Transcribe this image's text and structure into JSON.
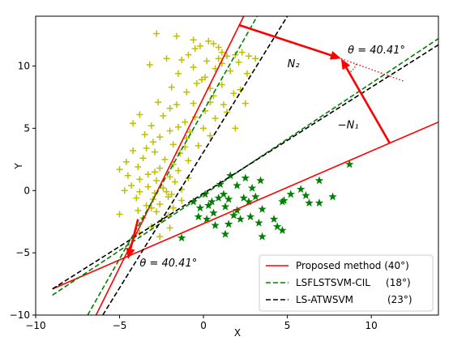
{
  "chart_data": {
    "type": "scatter",
    "title": "",
    "xlabel": "X",
    "ylabel": "Y",
    "xlim": [
      -10,
      14
    ],
    "ylim": [
      -10,
      14
    ],
    "xticks": [
      -10,
      -5,
      0,
      5,
      10
    ],
    "yticks": [
      -10,
      -5,
      0,
      5,
      10
    ],
    "xtick_labels": [
      "−10",
      "−5",
      "0",
      "5",
      "10"
    ],
    "ytick_labels": [
      "−10",
      "−5",
      "0",
      "5",
      "10"
    ],
    "grid": false,
    "legend_position": "lower-right",
    "series": [
      {
        "marker": "plus",
        "color": "#bfbf00",
        "points": [
          [
            -2.8,
            12.6
          ],
          [
            -1.6,
            12.4
          ],
          [
            -0.6,
            12.1
          ],
          [
            0.3,
            12.0
          ],
          [
            0.6,
            11.8
          ],
          [
            -0.2,
            11.6
          ],
          [
            0.9,
            11.5
          ],
          [
            -0.5,
            11.4
          ],
          [
            1.1,
            11.1
          ],
          [
            2.3,
            11.1
          ],
          [
            -0.9,
            10.9
          ],
          [
            1.4,
            10.8
          ],
          [
            1.9,
            10.9
          ],
          [
            2.7,
            10.8
          ],
          [
            -2.2,
            10.6
          ],
          [
            -1.3,
            10.5
          ],
          [
            0.2,
            10.4
          ],
          [
            1.1,
            10.2
          ],
          [
            2.1,
            10.3
          ],
          [
            3.1,
            10.6
          ],
          [
            -3.2,
            10.1
          ],
          [
            -0.6,
            9.9
          ],
          [
            0.7,
            9.8
          ],
          [
            1.6,
            9.6
          ],
          [
            -1.5,
            9.4
          ],
          [
            0.1,
            9.1
          ],
          [
            2.6,
            9.4
          ],
          [
            -0.4,
            8.6
          ],
          [
            1.1,
            8.5
          ],
          [
            -1.9,
            8.3
          ],
          [
            0.4,
            8.2
          ],
          [
            2.2,
            8.1
          ],
          [
            -1.0,
            7.9
          ],
          [
            0.6,
            7.6
          ],
          [
            1.8,
            7.8
          ],
          [
            -2.7,
            7.1
          ],
          [
            -0.6,
            7.0
          ],
          [
            1.2,
            6.9
          ],
          [
            2.5,
            7.0
          ],
          [
            -2.0,
            6.6
          ],
          [
            0.1,
            6.4
          ],
          [
            1.4,
            6.3
          ],
          [
            -3.8,
            6.1
          ],
          [
            -2.4,
            6.0
          ],
          [
            -0.5,
            5.9
          ],
          [
            0.7,
            5.8
          ],
          [
            -4.2,
            5.4
          ],
          [
            -3.1,
            5.2
          ],
          [
            -1.5,
            5.1
          ],
          [
            0.0,
            5.0
          ],
          [
            1.9,
            5.0
          ],
          [
            -2.0,
            4.8
          ],
          [
            -0.8,
            4.7
          ],
          [
            -3.5,
            4.5
          ],
          [
            -2.6,
            4.3
          ],
          [
            -1.0,
            4.2
          ],
          [
            0.4,
            4.4
          ],
          [
            -3.0,
            3.9
          ],
          [
            -1.8,
            3.7
          ],
          [
            -0.3,
            3.6
          ],
          [
            -4.2,
            3.2
          ],
          [
            -2.9,
            3.1
          ],
          [
            -1.4,
            3.0
          ],
          [
            -3.6,
            2.6
          ],
          [
            -2.3,
            2.5
          ],
          [
            -0.9,
            2.4
          ],
          [
            -5.0,
            1.7
          ],
          [
            -3.9,
            1.9
          ],
          [
            -2.6,
            1.8
          ],
          [
            -1.5,
            1.6
          ],
          [
            -4.5,
            1.2
          ],
          [
            -3.3,
            1.3
          ],
          [
            -2.0,
            1.1
          ],
          [
            -0.9,
            1.0
          ],
          [
            -3.8,
            0.9
          ],
          [
            -2.8,
            0.8
          ],
          [
            -1.7,
            0.7
          ],
          [
            -4.3,
            0.4
          ],
          [
            -3.3,
            0.3
          ],
          [
            -2.4,
            0.2
          ],
          [
            -1.3,
            0.1
          ],
          [
            -4.7,
            0.0
          ],
          [
            -3.8,
            -0.1
          ],
          [
            -2.9,
            -0.2
          ],
          [
            -1.9,
            -0.3
          ],
          [
            -4.0,
            -0.6
          ],
          [
            -3.0,
            -0.7
          ],
          [
            -2.1,
            -0.5
          ],
          [
            -1.3,
            -0.8
          ],
          [
            -3.4,
            -1.2
          ],
          [
            -2.6,
            -1.1
          ],
          [
            -1.8,
            -1.4
          ],
          [
            -5.0,
            -1.9
          ],
          [
            -3.9,
            -1.6
          ],
          [
            -2.8,
            -1.7
          ],
          [
            -2.1,
            -2.0
          ],
          [
            -3.6,
            -2.2
          ],
          [
            -2.5,
            -2.4
          ],
          [
            -3.1,
            -2.9
          ],
          [
            -2.0,
            -3.0
          ],
          [
            -3.8,
            -3.4
          ],
          [
            -2.6,
            -3.7
          ],
          [
            -1.6,
            6.9
          ],
          [
            -0.1,
            8.9
          ],
          [
            0.9,
            10.6
          ],
          [
            -1.1,
            5.5
          ],
          [
            0.4,
            7.1
          ],
          [
            -3.4,
            3.4
          ],
          [
            -1.8,
            2.1
          ],
          [
            -2.9,
            1.5
          ],
          [
            -2.2,
            -0.1
          ],
          [
            -3.1,
            -1.4
          ],
          [
            -1.1,
            3.5
          ],
          [
            -4.6,
            2.3
          ]
        ]
      },
      {
        "marker": "star",
        "color": "#008000",
        "points": [
          [
            8.7,
            2.1
          ],
          [
            1.6,
            1.2
          ],
          [
            2.5,
            1.0
          ],
          [
            3.4,
            0.8
          ],
          [
            1.0,
            0.5
          ],
          [
            2.0,
            0.4
          ],
          [
            2.9,
            0.2
          ],
          [
            6.9,
            0.8
          ],
          [
            5.8,
            0.1
          ],
          [
            0.1,
            -0.3
          ],
          [
            1.2,
            -0.3
          ],
          [
            2.4,
            -0.6
          ],
          [
            3.1,
            -0.5
          ],
          [
            7.7,
            -0.5
          ],
          [
            6.1,
            -0.4
          ],
          [
            -0.6,
            -0.9
          ],
          [
            0.5,
            -0.9
          ],
          [
            2.7,
            -0.9
          ],
          [
            4.7,
            -0.9
          ],
          [
            6.3,
            -1.0
          ],
          [
            6.9,
            -1.0
          ],
          [
            0.3,
            -1.2
          ],
          [
            1.3,
            -1.3
          ],
          [
            2.0,
            -1.6
          ],
          [
            3.5,
            -1.5
          ],
          [
            0.6,
            -1.8
          ],
          [
            1.8,
            -2.0
          ],
          [
            2.8,
            -2.1
          ],
          [
            4.2,
            -2.3
          ],
          [
            -0.3,
            -2.1
          ],
          [
            0.2,
            -2.3
          ],
          [
            3.3,
            -2.6
          ],
          [
            1.5,
            -2.7
          ],
          [
            0.7,
            -2.8
          ],
          [
            4.4,
            -2.9
          ],
          [
            4.7,
            -3.2
          ],
          [
            1.3,
            -3.5
          ],
          [
            3.5,
            -3.7
          ],
          [
            -1.3,
            -3.8
          ],
          [
            0.9,
            -0.6
          ],
          [
            1.5,
            -0.7
          ],
          [
            5.2,
            -0.3
          ],
          [
            4.8,
            -0.8
          ],
          [
            2.2,
            -2.3
          ],
          [
            -0.2,
            -1.4
          ]
        ]
      }
    ],
    "lines": [
      {
        "name": "Proposed method (40°)",
        "color": "#ff0000",
        "dash": "solid",
        "x": [
          -9,
          14
        ],
        "y": [
          -7.9,
          5.5
        ]
      },
      {
        "name": "",
        "color": "#ff0000",
        "dash": "solid",
        "x": [
          -6.4,
          2.4
        ],
        "y": [
          -10,
          14
        ]
      },
      {
        "name": "LSFLSTSVM-CIL     (18°)",
        "color": "#008000",
        "dash": "dashed",
        "x": [
          -9,
          14
        ],
        "y": [
          -8.4,
          12.2
        ]
      },
      {
        "name": "",
        "color": "#008000",
        "dash": "dashed",
        "x": [
          -6.9,
          3.2
        ],
        "y": [
          -10,
          14
        ]
      },
      {
        "name": "LS-ATWSVM           (23°)",
        "color": "#000000",
        "dash": "dashed",
        "x": [
          -9,
          14
        ],
        "y": [
          -7.9,
          11.7
        ]
      },
      {
        "name": "",
        "color": "#000000",
        "dash": "dashed",
        "x": [
          -6.0,
          5.0
        ],
        "y": [
          -10,
          14
        ]
      }
    ],
    "arrows": [
      {
        "color": "#ff0000",
        "from": [
          2.1,
          13.3
        ],
        "to": [
          8.2,
          10.6
        ]
      },
      {
        "color": "#ff0000",
        "from": [
          11.1,
          3.8
        ],
        "to": [
          8.2,
          10.6
        ]
      },
      {
        "color": "#ff0000",
        "from": [
          -3.9,
          -2.3
        ],
        "to": [
          -4.5,
          -5.5
        ]
      }
    ],
    "dotted_lines": [
      {
        "color": "#ff0000",
        "from": [
          8.2,
          10.6
        ],
        "to": [
          11.9,
          8.8
        ]
      }
    ],
    "annotations": [
      {
        "text": "θ = 40.41°",
        "x": 8.6,
        "y": 11.0
      },
      {
        "text": "N₂",
        "x": 5.0,
        "y": 9.9
      },
      {
        "text": "−N₁",
        "x": 8.0,
        "y": 5.0
      },
      {
        "text": "θ = 40.41°",
        "x": -3.8,
        "y": -6.1
      }
    ],
    "legend": [
      {
        "label": "Proposed method (40°)",
        "color": "#ff0000",
        "dash": "solid"
      },
      {
        "label": "LSFLSTSVM-CIL     (18°)",
        "color": "#008000",
        "dash": "dashed"
      },
      {
        "label": "LS-ATWSVM           (23°)",
        "color": "#000000",
        "dash": "dashed"
      }
    ]
  }
}
